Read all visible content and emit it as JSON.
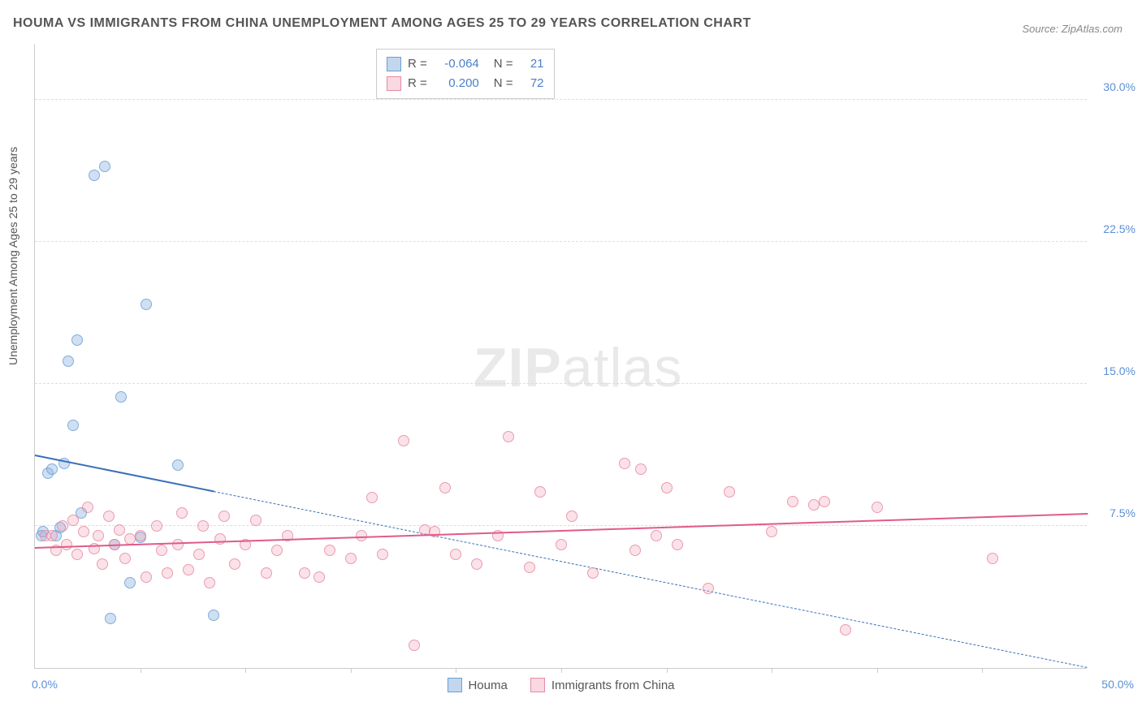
{
  "title": "HOUMA VS IMMIGRANTS FROM CHINA UNEMPLOYMENT AMONG AGES 25 TO 29 YEARS CORRELATION CHART",
  "source": "Source: ZipAtlas.com",
  "y_axis_label": "Unemployment Among Ages 25 to 29 years",
  "watermark_bold": "ZIP",
  "watermark_light": "atlas",
  "chart": {
    "type": "scatter",
    "xlim": [
      0,
      50
    ],
    "ylim": [
      0,
      33
    ],
    "x_origin_label": "0.0%",
    "x_max_label": "50.0%",
    "x_ticks": [
      5,
      10,
      15,
      20,
      25,
      30,
      35,
      40,
      45
    ],
    "y_gridlines": [
      {
        "value": 7.5,
        "label": "7.5%"
      },
      {
        "value": 15.0,
        "label": "15.0%"
      },
      {
        "value": 22.5,
        "label": "22.5%"
      },
      {
        "value": 30.0,
        "label": "30.0%"
      }
    ],
    "background_color": "#ffffff",
    "grid_color": "#dddddd",
    "series": [
      {
        "name": "Houma",
        "color_fill": "rgba(134,176,222,0.45)",
        "color_stroke": "#6a9fd6",
        "css_class": "blue",
        "R": "-0.064",
        "N": "21",
        "trend_color": "#3a6fb8",
        "trend": {
          "x1": 0,
          "y1": 11.2,
          "x2": 50,
          "y2": 0.0,
          "solid_until_x": 8.5
        },
        "points": [
          [
            0.3,
            7.0
          ],
          [
            0.4,
            7.2
          ],
          [
            0.6,
            10.3
          ],
          [
            0.8,
            10.5
          ],
          [
            1.0,
            7.0
          ],
          [
            1.2,
            7.4
          ],
          [
            1.4,
            10.8
          ],
          [
            1.8,
            12.8
          ],
          [
            2.0,
            17.3
          ],
          [
            2.2,
            8.2
          ],
          [
            2.8,
            26.0
          ],
          [
            3.3,
            26.5
          ],
          [
            3.6,
            2.6
          ],
          [
            3.8,
            6.5
          ],
          [
            4.1,
            14.3
          ],
          [
            4.5,
            4.5
          ],
          [
            5.0,
            6.9
          ],
          [
            5.3,
            19.2
          ],
          [
            6.8,
            10.7
          ],
          [
            8.5,
            2.8
          ],
          [
            1.6,
            16.2
          ]
        ]
      },
      {
        "name": "Immigrants from China",
        "color_fill": "rgba(240,160,180,0.35)",
        "color_stroke": "#e68aa3",
        "css_class": "pink",
        "R": "0.200",
        "N": "72",
        "trend_color": "#e05a8a",
        "trend": {
          "x1": 0,
          "y1": 6.3,
          "x2": 50,
          "y2": 8.1,
          "solid_until_x": 50
        },
        "points": [
          [
            0.5,
            7.0
          ],
          [
            0.8,
            7.0
          ],
          [
            1.0,
            6.2
          ],
          [
            1.3,
            7.5
          ],
          [
            1.5,
            6.5
          ],
          [
            1.8,
            7.8
          ],
          [
            2.0,
            6.0
          ],
          [
            2.3,
            7.2
          ],
          [
            2.5,
            8.5
          ],
          [
            2.8,
            6.3
          ],
          [
            3.0,
            7.0
          ],
          [
            3.2,
            5.5
          ],
          [
            3.5,
            8.0
          ],
          [
            3.8,
            6.5
          ],
          [
            4.0,
            7.3
          ],
          [
            4.3,
            5.8
          ],
          [
            4.5,
            6.8
          ],
          [
            5.0,
            7.0
          ],
          [
            5.3,
            4.8
          ],
          [
            5.8,
            7.5
          ],
          [
            6.0,
            6.2
          ],
          [
            6.3,
            5.0
          ],
          [
            6.8,
            6.5
          ],
          [
            7.0,
            8.2
          ],
          [
            7.3,
            5.2
          ],
          [
            7.8,
            6.0
          ],
          [
            8.0,
            7.5
          ],
          [
            8.3,
            4.5
          ],
          [
            8.8,
            6.8
          ],
          [
            9.0,
            8.0
          ],
          [
            9.5,
            5.5
          ],
          [
            10.0,
            6.5
          ],
          [
            10.5,
            7.8
          ],
          [
            11.0,
            5.0
          ],
          [
            11.5,
            6.2
          ],
          [
            12.0,
            7.0
          ],
          [
            12.8,
            5.0
          ],
          [
            13.5,
            4.8
          ],
          [
            14.0,
            6.2
          ],
          [
            15.0,
            5.8
          ],
          [
            15.5,
            7.0
          ],
          [
            16.0,
            9.0
          ],
          [
            16.5,
            6.0
          ],
          [
            17.5,
            12.0
          ],
          [
            18.0,
            1.2
          ],
          [
            18.5,
            7.3
          ],
          [
            19.5,
            9.5
          ],
          [
            20.0,
            6.0
          ],
          [
            21.0,
            5.5
          ],
          [
            22.0,
            7.0
          ],
          [
            22.5,
            12.2
          ],
          [
            23.5,
            5.3
          ],
          [
            24.0,
            9.3
          ],
          [
            25.0,
            6.5
          ],
          [
            25.5,
            8.0
          ],
          [
            26.5,
            5.0
          ],
          [
            28.0,
            10.8
          ],
          [
            28.5,
            6.2
          ],
          [
            28.8,
            10.5
          ],
          [
            30.0,
            9.5
          ],
          [
            30.5,
            6.5
          ],
          [
            32.0,
            4.2
          ],
          [
            33.0,
            9.3
          ],
          [
            35.0,
            7.2
          ],
          [
            36.0,
            8.8
          ],
          [
            37.0,
            8.6
          ],
          [
            37.5,
            8.8
          ],
          [
            38.5,
            2.0
          ],
          [
            45.5,
            5.8
          ],
          [
            40.0,
            8.5
          ],
          [
            29.5,
            7.0
          ],
          [
            19.0,
            7.2
          ]
        ]
      }
    ],
    "legend": {
      "r_label": "R =",
      "n_label": "N =",
      "bottom_items": [
        "Houma",
        "Immigrants from China"
      ]
    }
  }
}
